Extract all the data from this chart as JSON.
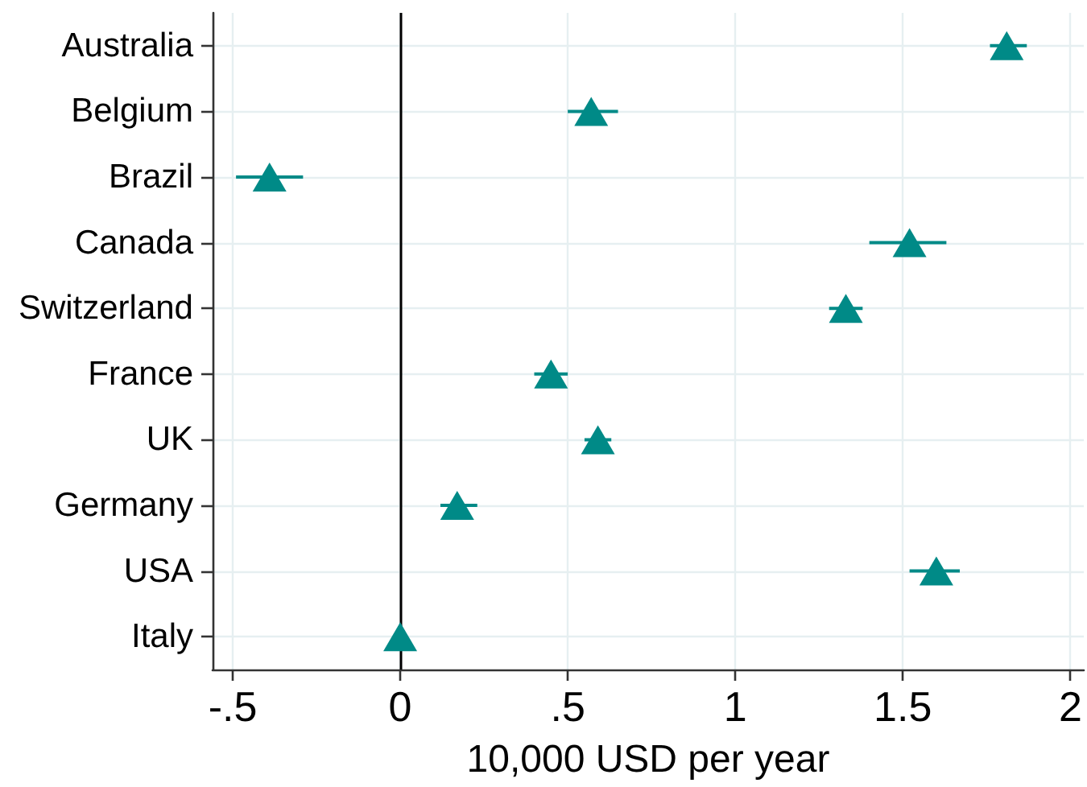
{
  "chart_data": {
    "type": "scatter",
    "orientation": "horizontal",
    "categories": [
      "Australia",
      "Belgium",
      "Brazil",
      "Canada",
      "Switzerland",
      "France",
      "UK",
      "Germany",
      "USA",
      "Italy"
    ],
    "values": [
      1.81,
      0.57,
      -0.39,
      1.52,
      1.33,
      0.45,
      0.59,
      0.17,
      1.6,
      0
    ],
    "errors": [
      [
        1.76,
        1.87
      ],
      [
        0.5,
        0.65
      ],
      [
        -0.49,
        -0.29
      ],
      [
        1.4,
        1.63
      ],
      [
        1.28,
        1.38
      ],
      [
        0.4,
        0.5
      ],
      [
        0.55,
        0.63
      ],
      [
        0.12,
        0.23
      ],
      [
        1.52,
        1.67
      ],
      null
    ],
    "color": "#008a87",
    "marker": "triangle",
    "xlabel": "10,000 USD per year",
    "xlim": [
      -0.56,
      2.04
    ],
    "xticks": [
      {
        "value": -0.5,
        "label": "-.5"
      },
      0,
      {
        "value": 0.5,
        "label": ".5"
      },
      1,
      1.5,
      2
    ],
    "grid": true,
    "ref_lines": [
      {
        "axis": "x",
        "value": 0,
        "color": "#000000"
      }
    ]
  }
}
